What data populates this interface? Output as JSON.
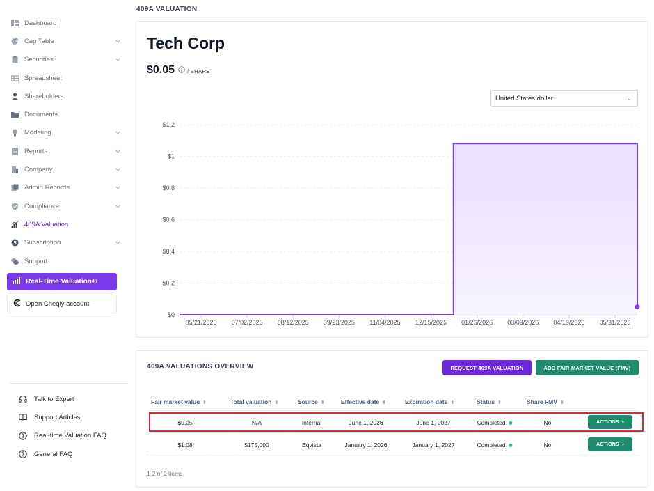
{
  "sidebar": {
    "items": [
      {
        "label": "Dashboard",
        "icon": "dashboard-icon",
        "has_chevron": false,
        "active": false
      },
      {
        "label": "Cap Table",
        "icon": "pie-chart-icon",
        "has_chevron": true,
        "active": false
      },
      {
        "label": "Securities",
        "icon": "clipboard-icon",
        "has_chevron": true,
        "active": false
      },
      {
        "label": "Spreadsheet",
        "icon": "spreadsheet-icon",
        "has_chevron": false,
        "active": false
      },
      {
        "label": "Shareholders",
        "icon": "person-icon",
        "has_chevron": false,
        "active": false
      },
      {
        "label": "Documents",
        "icon": "folder-icon",
        "has_chevron": false,
        "active": false
      },
      {
        "label": "Modeling",
        "icon": "lightbulb-icon",
        "has_chevron": true,
        "active": false
      },
      {
        "label": "Reports",
        "icon": "report-icon",
        "has_chevron": true,
        "active": false
      },
      {
        "label": "Company",
        "icon": "building-icon",
        "has_chevron": true,
        "active": false
      },
      {
        "label": "Admin Records",
        "icon": "admin-records-icon",
        "has_chevron": true,
        "active": false
      },
      {
        "label": "Compliance",
        "icon": "shield-check-icon",
        "has_chevron": true,
        "active": false
      },
      {
        "label": "409A Valuation",
        "icon": "bar-chart-icon",
        "has_chevron": false,
        "active": true
      },
      {
        "label": "Subscription",
        "icon": "dollar-circle-icon",
        "has_chevron": true,
        "active": false
      },
      {
        "label": "Support",
        "icon": "chat-icon",
        "has_chevron": false,
        "active": false
      }
    ],
    "rtv_button": "Real-Time Valuation®",
    "cheqly_button": "Open Cheqly account",
    "help_items": [
      {
        "label": "Talk to Expert",
        "icon": "headset-icon"
      },
      {
        "label": "Support Articles",
        "icon": "book-icon"
      },
      {
        "label": "Real-time Valuation FAQ",
        "icon": "question-circle-icon"
      },
      {
        "label": "General FAQ",
        "icon": "question-circle-icon"
      }
    ]
  },
  "header": {
    "title": "409A VALUATION"
  },
  "summary": {
    "company_name": "Tech Corp",
    "price": "$0.05",
    "price_unit": "/ SHARE",
    "currency_value": "United States dollar"
  },
  "chart_data": {
    "type": "line",
    "title": "",
    "xlabel": "",
    "ylabel": "",
    "ylim": [
      0,
      1.2
    ],
    "y_ticks": [
      0,
      0.2,
      0.4,
      0.6,
      0.8,
      1,
      1.2
    ],
    "y_tick_labels": [
      "$0",
      "$0.2",
      "$0.4",
      "$0.6",
      "$0.8",
      "$1",
      "$1.2"
    ],
    "x_tick_labels": [
      "05/21/2025",
      "07/02/2025",
      "08/12/2025",
      "09/23/2025",
      "11/04/2025",
      "12/15/2025",
      "01/26/2026",
      "03/09/2026",
      "04/19/2026",
      "05/31/2026"
    ],
    "x_range": [
      "2025-05-21",
      "2026-06-01"
    ],
    "step": true,
    "area_fill": true,
    "grid": true,
    "series": [
      {
        "x": [
          "2025-05-21",
          "2026-01-01",
          "2026-06-01",
          "2026-06-01"
        ],
        "values": [
          0,
          1.08,
          1.08,
          0.05
        ]
      }
    ],
    "point": {
      "x": "2026-06-01",
      "value": 0.05
    },
    "colors": {
      "line": "#7c3aed",
      "fill_top": "#e9dfff",
      "fill_bottom": "#f7f3ff",
      "grid": "#eceef2",
      "axis": "#cfd3da"
    }
  },
  "overview": {
    "title": "409A VALUATIONS OVERVIEW",
    "request_button": "REQUEST 409A VALUATION",
    "add_fmv_button": "ADD FAIR MARKET VALUE (FMV)",
    "columns": [
      "Fair market value",
      "Total valuation",
      "Source",
      "Effective date",
      "Expiration date",
      "Status",
      "Share FMV"
    ],
    "rows": [
      {
        "fmv": "$0.05",
        "total": "N/A",
        "source": "Internal",
        "effective": "June 1, 2026",
        "expiration": "June 1, 2027",
        "status": "Completed",
        "share_fmv": "No",
        "action": "ACTIONS"
      },
      {
        "fmv": "$1.08",
        "total": "$175,000",
        "source": "Eqvista",
        "effective": "January 1, 2026",
        "expiration": "January 1, 2027",
        "status": "Completed",
        "share_fmv": "No",
        "action": "ACTIONS"
      }
    ],
    "pager": "1-2 of 2 items"
  }
}
